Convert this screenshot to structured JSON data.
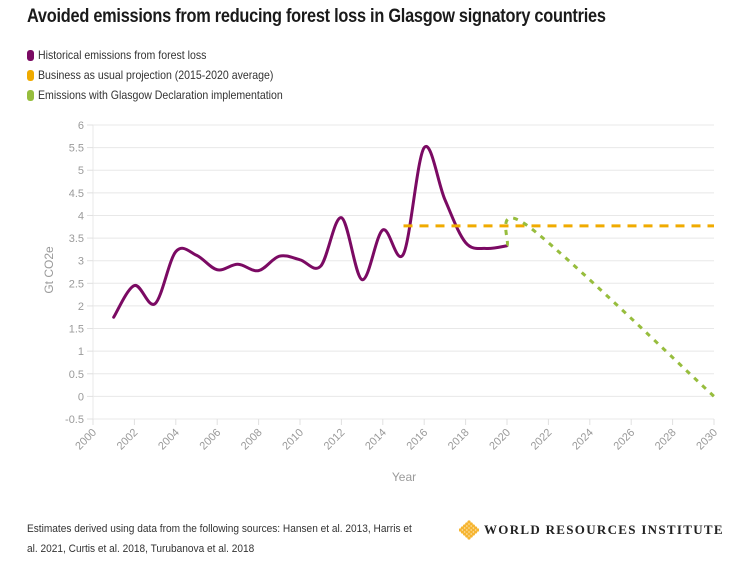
{
  "chart_data": {
    "type": "line",
    "title": "Avoided emissions from reducing forest loss in Glasgow signatory countries",
    "xlabel": "Year",
    "ylabel": "Gt CO2e",
    "xlim": [
      2000,
      2030
    ],
    "ylim": [
      -0.5,
      6
    ],
    "grid": true,
    "legend_position": "top-left",
    "x_ticks": [
      "2000",
      "2002",
      "2004",
      "2006",
      "2008",
      "2010",
      "2012",
      "2014",
      "2016",
      "2018",
      "2020",
      "2022",
      "2024",
      "2026",
      "2028",
      "2030"
    ],
    "y_ticks": [
      "6",
      "5.5",
      "5",
      "4.5",
      "4",
      "3.5",
      "3",
      "2.5",
      "2",
      "1.5",
      "1",
      "0.5",
      "0",
      "-0.5"
    ],
    "series": [
      {
        "name": "Historical emissions from forest loss",
        "color": "#7b0a63",
        "style": "solid",
        "x": [
          2001,
          2002,
          2003,
          2004,
          2005,
          2006,
          2007,
          2008,
          2009,
          2010,
          2011,
          2012,
          2013,
          2014,
          2015,
          2016,
          2017,
          2018,
          2019,
          2020
        ],
        "values": [
          1.75,
          2.45,
          2.05,
          3.2,
          3.12,
          2.8,
          2.92,
          2.78,
          3.1,
          3.02,
          2.88,
          3.95,
          2.58,
          3.68,
          3.15,
          5.5,
          4.35,
          3.4,
          3.27,
          3.33
        ]
      },
      {
        "name": "Business as usual projection (2015-2020 average)",
        "color": "#f0ab00",
        "style": "dashed",
        "x": [
          2015,
          2030
        ],
        "values": [
          3.77,
          3.77
        ]
      },
      {
        "name": "Emissions with Glasgow Declaration implementation",
        "color": "#97bd3d",
        "style": "dotted",
        "x": [
          2020,
          2021,
          2030
        ],
        "values": [
          3.33,
          3.77,
          0
        ]
      }
    ]
  },
  "footer": {
    "sources": "Estimates derived using data from the following sources: Hansen et al. 2013, Harris et al. 2021, Curtis et al. 2018, Turubanova et al. 2018",
    "logo_text": "WORLD RESOURCES INSTITUTE",
    "logo_color": "#f6b531"
  }
}
